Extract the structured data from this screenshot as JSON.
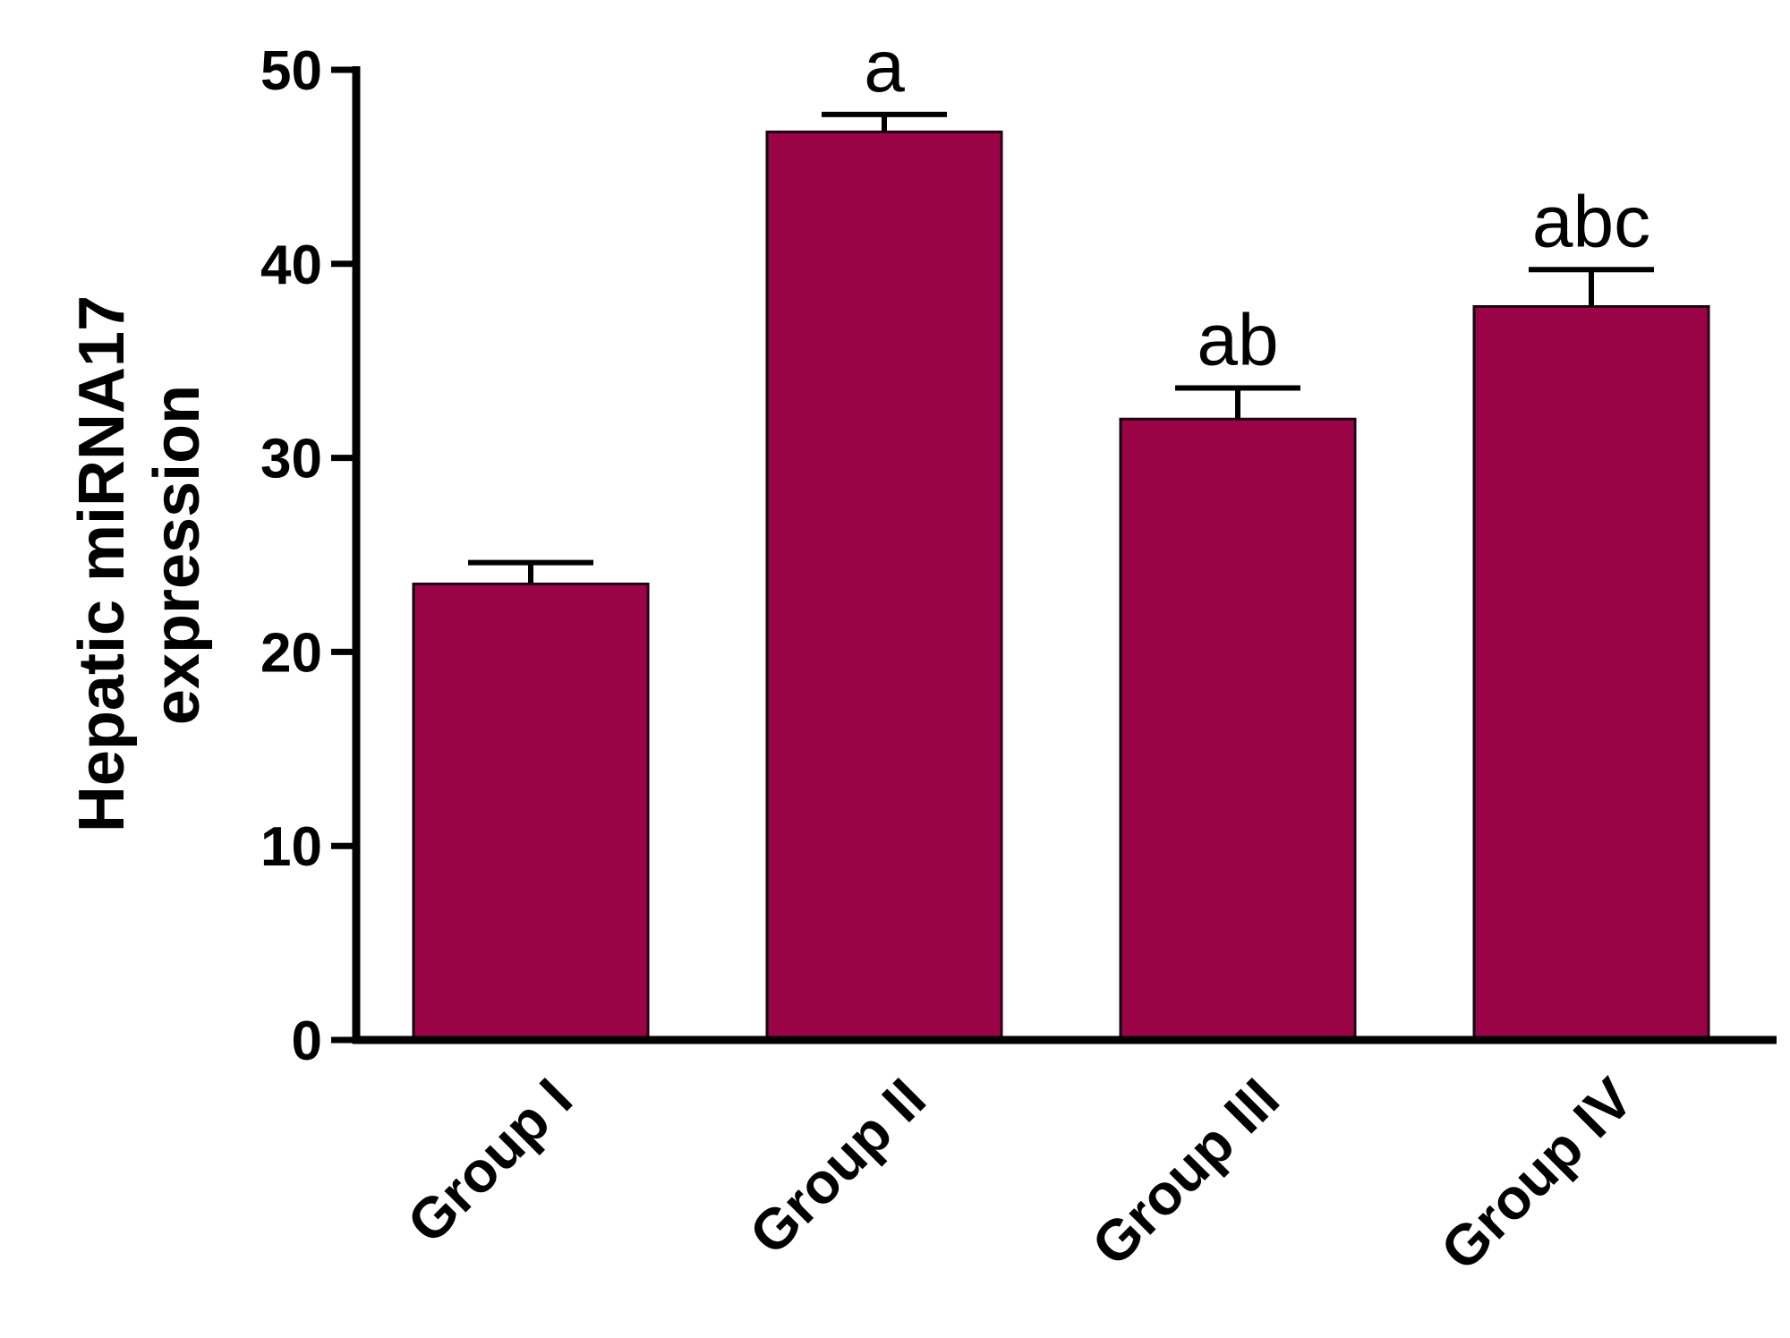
{
  "chart_data": {
    "type": "bar",
    "categories": [
      "Group I",
      "Group II",
      "Group III",
      "Group IV"
    ],
    "values": [
      23.5,
      46.8,
      32.0,
      37.8
    ],
    "errors": [
      1.1,
      0.9,
      1.6,
      1.9
    ],
    "annotations": [
      "",
      "a",
      "ab",
      "abc"
    ],
    "ylabel_lines": [
      "Hepatic miRNA17",
      "expression"
    ],
    "ylim": [
      0,
      50
    ],
    "yticks": [
      "0",
      "10",
      "20",
      "30",
      "40",
      "50"
    ],
    "bar_color": "#9c0448",
    "grid": false
  }
}
